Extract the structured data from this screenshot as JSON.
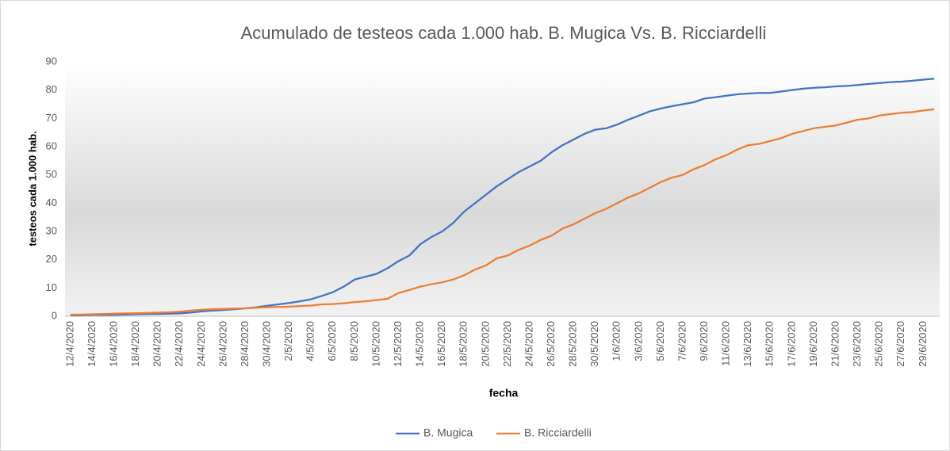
{
  "chart_data": {
    "type": "line",
    "title": "Acumulado de testeos cada 1.000 hab. B. Mugica Vs. B. Ricciardelli",
    "x_label": "fecha",
    "y_label": "testeos cada 1.000 hab.",
    "categories": [
      "12/4/2020",
      null,
      "14/4/2020",
      null,
      "16/4/2020",
      null,
      "18/4/2020",
      null,
      "20/4/2020",
      null,
      "22/4/2020",
      null,
      "24/4/2020",
      null,
      "26/4/2020",
      null,
      "28/4/2020",
      null,
      "30/4/2020",
      null,
      "2/5/2020",
      null,
      "4/5/2020",
      null,
      "6/5/2020",
      null,
      "8/5/2020",
      null,
      "10/5/2020",
      null,
      "12/5/2020",
      null,
      "14/5/2020",
      null,
      "16/5/2020",
      null,
      "18/5/2020",
      null,
      "20/5/2020",
      null,
      "22/5/2020",
      null,
      "24/5/2020",
      null,
      "26/5/2020",
      null,
      "28/5/2020",
      null,
      "30/5/2020",
      null,
      "1/6/2020",
      null,
      "3/6/2020",
      null,
      "5/6/2020",
      null,
      "7/6/2020",
      null,
      "9/6/2020",
      null,
      "11/6/2020",
      null,
      "13/6/2020",
      null,
      "15/6/2020",
      null,
      "17/6/2020",
      null,
      "19/6/2020",
      null,
      "21/6/2020",
      null,
      "23/6/2020",
      null,
      "25/6/2020",
      null,
      "27/6/2020",
      null,
      "29/6/2020",
      null
    ],
    "series": [
      {
        "name": "B. Mugica",
        "color": "#4472c4",
        "values": [
          0.3,
          0.4,
          0.5,
          0.5,
          0.5,
          0.6,
          0.7,
          0.8,
          0.8,
          0.9,
          1.0,
          1.3,
          1.7,
          2.0,
          2.2,
          2.5,
          2.8,
          3.2,
          3.7,
          4.2,
          4.7,
          5.3,
          6,
          7.2,
          8.5,
          10.5,
          13,
          14,
          15,
          17,
          19.5,
          21.5,
          25.5,
          28,
          30,
          33,
          37,
          40,
          43,
          46,
          48.5,
          51,
          53,
          55,
          58,
          60.5,
          62.5,
          64.5,
          66,
          66.5,
          67.8,
          69.5,
          71,
          72.5,
          73.5,
          74.3,
          75,
          75.7,
          77,
          77.5,
          78,
          78.5,
          78.8,
          79,
          79,
          79.5,
          80,
          80.5,
          80.8,
          81,
          81.3,
          81.5,
          81.8,
          82.2,
          82.5,
          82.8,
          83,
          83.3,
          83.7,
          84
        ]
      },
      {
        "name": "B. Ricciardelli",
        "color": "#ed7d31",
        "values": [
          0.6,
          0.6,
          0.7,
          0.8,
          0.9,
          1.0,
          1.1,
          1.2,
          1.3,
          1.4,
          1.6,
          2.0,
          2.3,
          2.5,
          2.6,
          2.7,
          2.8,
          3.0,
          3.2,
          3.3,
          3.4,
          3.6,
          3.8,
          4.2,
          4.3,
          4.6,
          5,
          5.3,
          5.7,
          6.2,
          8.2,
          9.3,
          10.5,
          11.3,
          12,
          13,
          14.5,
          16.5,
          18,
          20.5,
          21.5,
          23.5,
          25,
          27,
          28.5,
          31,
          32.5,
          34.5,
          36.5,
          38,
          40,
          42,
          43.5,
          45.5,
          47.5,
          49,
          50,
          52,
          53.5,
          55.5,
          57,
          59,
          60.5,
          61,
          62,
          63,
          64.5,
          65.5,
          66.5,
          67,
          67.5,
          68.5,
          69.5,
          70,
          71,
          71.5,
          72,
          72.2,
          72.8,
          73.2
        ]
      }
    ],
    "ylim": [
      0,
      90
    ],
    "yticks": [
      0,
      10,
      20,
      30,
      40,
      50,
      60,
      70,
      80,
      90
    ],
    "grid": false,
    "legend": "bottom"
  }
}
